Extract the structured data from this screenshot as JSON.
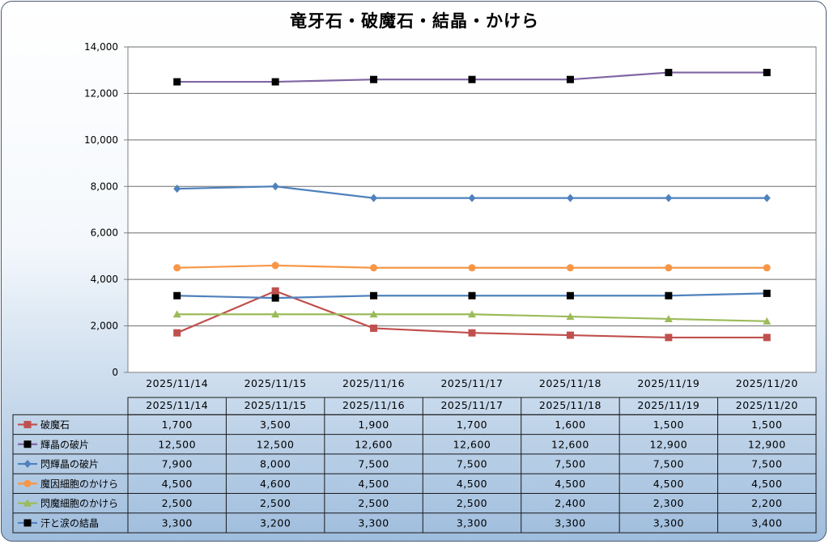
{
  "chart_data": {
    "type": "line",
    "title": "竜牙石・破魔石・結晶・かけら",
    "xlabel": "",
    "ylabel": "",
    "ylim": [
      0,
      14000
    ],
    "yticks": [
      "0",
      "2,000",
      "4,000",
      "6,000",
      "8,000",
      "10,000",
      "12,000",
      "14,000"
    ],
    "grid": "horizontal",
    "legend": "data-table-below",
    "categories": [
      "2025/11/14",
      "2025/11/15",
      "2025/11/16",
      "2025/11/17",
      "2025/11/18",
      "2025/11/19",
      "2025/11/20"
    ],
    "series": [
      {
        "name": "破魔石",
        "color": "#c0504d",
        "marker": "square",
        "values": [
          1700,
          3500,
          1900,
          1700,
          1600,
          1500,
          1500
        ],
        "labels": [
          "1,700",
          "3,500",
          "1,900",
          "1,700",
          "1,600",
          "1,500",
          "1,500"
        ]
      },
      {
        "name": "輝晶の破片",
        "color": "#8064a2",
        "marker": "square-black",
        "values": [
          12500,
          12500,
          12600,
          12600,
          12600,
          12900,
          12900
        ],
        "labels": [
          "12,500",
          "12,500",
          "12,600",
          "12,600",
          "12,600",
          "12,900",
          "12,900"
        ]
      },
      {
        "name": "閃輝晶の破片",
        "color": "#4f81bd",
        "marker": "diamond",
        "values": [
          7900,
          8000,
          7500,
          7500,
          7500,
          7500,
          7500
        ],
        "labels": [
          "7,900",
          "8,000",
          "7,500",
          "7,500",
          "7,500",
          "7,500",
          "7,500"
        ]
      },
      {
        "name": "魔因細胞のかけら",
        "color": "#f79646",
        "marker": "circle",
        "values": [
          4500,
          4600,
          4500,
          4500,
          4500,
          4500,
          4500
        ],
        "labels": [
          "4,500",
          "4,600",
          "4,500",
          "4,500",
          "4,500",
          "4,500",
          "4,500"
        ]
      },
      {
        "name": "閃魔細胞のかけら",
        "color": "#9bbb59",
        "marker": "triangle",
        "values": [
          2500,
          2500,
          2500,
          2500,
          2400,
          2300,
          2200
        ],
        "labels": [
          "2,500",
          "2,500",
          "2,500",
          "2,500",
          "2,400",
          "2,300",
          "2,200"
        ]
      },
      {
        "name": "汗と涙の結晶",
        "color": "#4f81bd",
        "marker": "square-black",
        "values": [
          3300,
          3200,
          3300,
          3300,
          3300,
          3300,
          3400
        ],
        "labels": [
          "3,300",
          "3,200",
          "3,300",
          "3,300",
          "3,300",
          "3,300",
          "3,400"
        ]
      }
    ]
  }
}
